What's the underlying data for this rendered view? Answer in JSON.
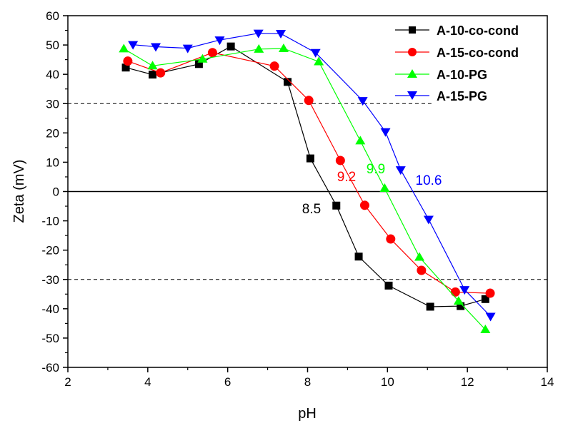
{
  "chart_data": {
    "type": "line",
    "title": "",
    "xlabel": "pH",
    "ylabel": "Zeta (mV)",
    "xlim": [
      2,
      14
    ],
    "ylim": [
      -60,
      60
    ],
    "xticks": [
      2,
      4,
      6,
      8,
      10,
      12,
      14
    ],
    "yticks": [
      -60,
      -50,
      -40,
      -30,
      -20,
      -10,
      0,
      10,
      20,
      30,
      40,
      50,
      60
    ],
    "grid": false,
    "legend_position": "top-right",
    "reference_lines": [
      {
        "y": 30,
        "style": "dashed"
      },
      {
        "y": -30,
        "style": "dashed"
      },
      {
        "y": 0,
        "style": "solid"
      }
    ],
    "series": [
      {
        "name": "A-10-co-cond",
        "color": "#000000",
        "marker": "square",
        "x": [
          3.45,
          4.12,
          5.28,
          6.08,
          7.5,
          8.07,
          8.72,
          9.28,
          10.03,
          11.07,
          11.83,
          12.45
        ],
        "y": [
          42.3,
          39.9,
          43.5,
          49.5,
          37.4,
          11.3,
          -4.8,
          -22.2,
          -32.1,
          -39.3,
          -39.1,
          -36.7
        ]
      },
      {
        "name": "A-15-co-cond",
        "color": "#ff0000",
        "marker": "circle",
        "x": [
          3.5,
          4.32,
          5.62,
          7.17,
          8.03,
          8.82,
          9.43,
          10.08,
          10.85,
          11.7,
          12.57
        ],
        "y": [
          44.5,
          40.5,
          47.4,
          42.8,
          31.1,
          10.6,
          -4.7,
          -16.2,
          -26.9,
          -34.3,
          -34.7
        ]
      },
      {
        "name": "A-10-PG",
        "color": "#00ff00",
        "marker": "triangle-up",
        "x": [
          3.4,
          4.12,
          5.37,
          6.78,
          7.4,
          8.28,
          9.32,
          9.93,
          10.8,
          11.78,
          12.45
        ],
        "y": [
          48.7,
          42.9,
          45.2,
          48.6,
          48.8,
          44.3,
          17.3,
          1.1,
          -22.4,
          -37.4,
          -47.1
        ]
      },
      {
        "name": "A-15-PG",
        "color": "#0000ff",
        "marker": "triangle-down",
        "x": [
          3.63,
          4.2,
          5.0,
          5.8,
          6.77,
          7.33,
          8.2,
          9.38,
          9.95,
          10.33,
          11.03,
          11.93,
          12.58
        ],
        "y": [
          50.1,
          49.4,
          48.9,
          51.7,
          54.0,
          53.9,
          47.4,
          31.0,
          20.4,
          7.4,
          -9.5,
          -33.5,
          -42.6
        ]
      }
    ],
    "annotations": [
      {
        "text": "8.5",
        "color": "#000000"
      },
      {
        "text": "9.2",
        "color": "#ff0000"
      },
      {
        "text": "9.9",
        "color": "#00ff00"
      },
      {
        "text": "10.6",
        "color": "#0000ff"
      }
    ]
  }
}
